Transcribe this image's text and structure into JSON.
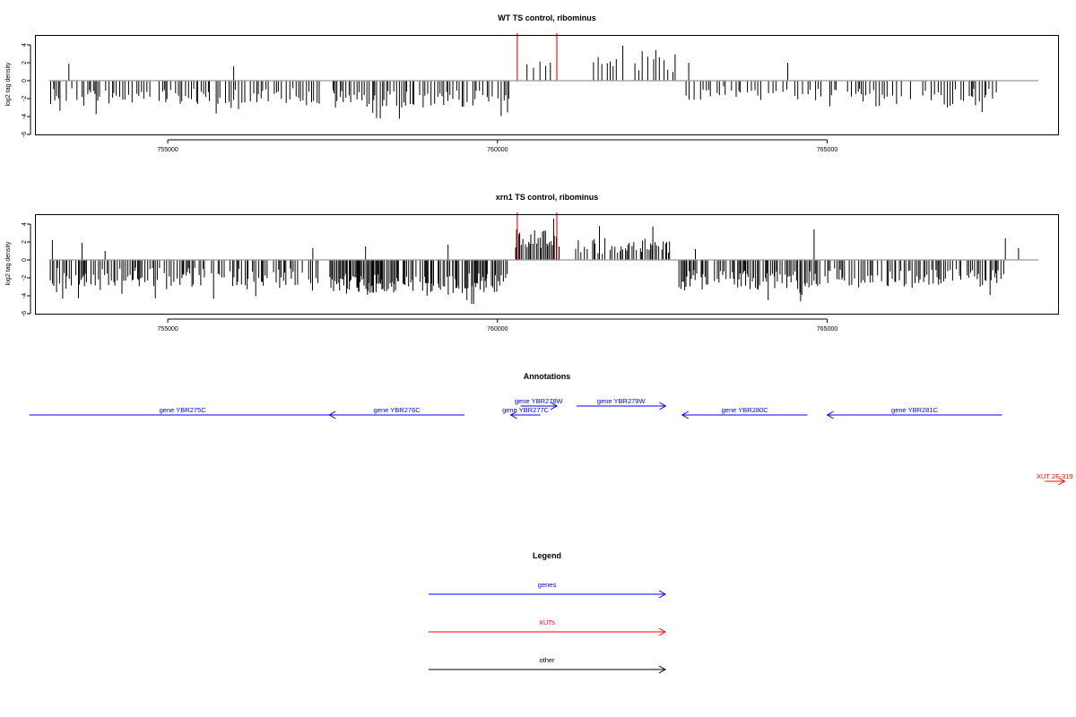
{
  "colors": {
    "genes": "#0000ff",
    "xuts": "#ff0000",
    "other": "#000000",
    "frame": "#000000",
    "baseline": "#9a9a9a",
    "bars": "#000000"
  },
  "chart_data": [
    {
      "type": "bar",
      "title": "WT TS control, ribominus",
      "ylabel": "log2 tag density",
      "xlim": [
        753000,
        768500
      ],
      "ylim": [
        -6,
        5
      ],
      "yticks": [
        "-6",
        "-4",
        "-2",
        "0",
        "2",
        "4"
      ],
      "xticks": [
        "755000",
        "760000",
        "765000"
      ],
      "baseline": [
        753200,
        768200
      ],
      "red_markers": [
        760300,
        760900
      ],
      "seed": 11,
      "segments": [
        {
          "start": 753200,
          "end": 757300,
          "mode": "neg",
          "mean": 1.7,
          "spread": 0.9,
          "density": 1
        },
        {
          "start": 757450,
          "end": 760200,
          "mode": "neg",
          "mean": 2.0,
          "spread": 1.0,
          "density": 1
        },
        {
          "start": 760300,
          "end": 760950,
          "mode": "pos",
          "mean": 1.6,
          "spread": 0.7,
          "density": 0.35
        },
        {
          "start": 761400,
          "end": 762700,
          "mode": "pos",
          "mean": 1.9,
          "spread": 1.0,
          "density": 0.6
        },
        {
          "start": 762800,
          "end": 764950,
          "mode": "neg",
          "mean": 1.4,
          "spread": 0.8,
          "density": 0.8
        },
        {
          "start": 765000,
          "end": 767600,
          "mode": "neg",
          "mean": 1.9,
          "spread": 1.0,
          "density": 0.9
        }
      ],
      "extra_bars": [
        [
          753500,
          1.9
        ],
        [
          756000,
          1.6
        ],
        [
          762900,
          2.0
        ],
        [
          764400,
          2.0
        ],
        [
          761900,
          3.9
        ],
        [
          762400,
          3.4
        ]
      ]
    },
    {
      "type": "bar",
      "title": "xrn1 TS control, ribominus",
      "ylabel": "log2 tag density",
      "xlim": [
        753000,
        768500
      ],
      "ylim": [
        -6,
        5
      ],
      "yticks": [
        "-6",
        "-4",
        "-2",
        "0",
        "2",
        "4"
      ],
      "xticks": [
        "755000",
        "760000",
        "765000"
      ],
      "baseline": [
        753200,
        768200
      ],
      "red_markers": [
        760300,
        760900
      ],
      "seed": 29,
      "segments": [
        {
          "start": 753200,
          "end": 757300,
          "mode": "neg",
          "mean": 1.9,
          "spread": 1.1,
          "density": 1.3
        },
        {
          "start": 757450,
          "end": 760150,
          "mode": "neg",
          "mean": 2.7,
          "spread": 1.2,
          "density": 2.2
        },
        {
          "start": 760250,
          "end": 760950,
          "mode": "pos",
          "mean": 2.4,
          "spread": 1.1,
          "density": 2.0
        },
        {
          "start": 761150,
          "end": 762650,
          "mode": "pos",
          "mean": 1.6,
          "spread": 1.0,
          "density": 1.2
        },
        {
          "start": 762700,
          "end": 764900,
          "mode": "neg",
          "mean": 2.2,
          "spread": 1.1,
          "density": 1.6
        },
        {
          "start": 764950,
          "end": 767700,
          "mode": "neg",
          "mean": 2.0,
          "spread": 1.1,
          "density": 1.3
        }
      ],
      "extra_bars": [
        [
          753250,
          2.2
        ],
        [
          753700,
          1.9
        ],
        [
          754050,
          1.0
        ],
        [
          757200,
          1.3
        ],
        [
          758000,
          1.5
        ],
        [
          759250,
          1.7
        ],
        [
          764800,
          3.4
        ],
        [
          767700,
          2.4
        ],
        [
          767900,
          1.3
        ],
        [
          763000,
          1.2
        ],
        [
          760850,
          4.6
        ]
      ]
    }
  ],
  "annotations": {
    "title": "Annotations",
    "xlim": [
      753000,
      768500
    ],
    "items": [
      {
        "label": "gene YBR275C",
        "start": 752900,
        "end": 757550,
        "row": 1,
        "dir": "none",
        "type": "genes"
      },
      {
        "label": "gene YBR276C",
        "start": 757450,
        "end": 759500,
        "row": 1,
        "dir": "left",
        "type": "genes"
      },
      {
        "label": "gene YBR277C",
        "start": 760200,
        "end": 760650,
        "row": 1,
        "dir": "left",
        "type": "genes"
      },
      {
        "label": "gene YBR278W",
        "start": 760350,
        "end": 760900,
        "row": 0,
        "dir": "right",
        "type": "genes"
      },
      {
        "label": "gene YBR279W",
        "start": 761200,
        "end": 762550,
        "row": 0,
        "dir": "right",
        "type": "genes"
      },
      {
        "label": "gene YBR280C",
        "start": 762800,
        "end": 764700,
        "row": 1,
        "dir": "left",
        "type": "genes"
      },
      {
        "label": "gene YBR281C",
        "start": 765000,
        "end": 767650,
        "row": 1,
        "dir": "left",
        "type": "genes"
      },
      {
        "label": "XUT 2F-319",
        "start": 768300,
        "end": 768600,
        "row": 2,
        "dir": "right",
        "type": "xuts"
      }
    ]
  },
  "legend": {
    "title": "Legend",
    "entries": [
      {
        "label": "genes",
        "type": "genes"
      },
      {
        "label": "XUTs",
        "type": "xuts"
      },
      {
        "label": "other",
        "type": "other"
      }
    ]
  }
}
